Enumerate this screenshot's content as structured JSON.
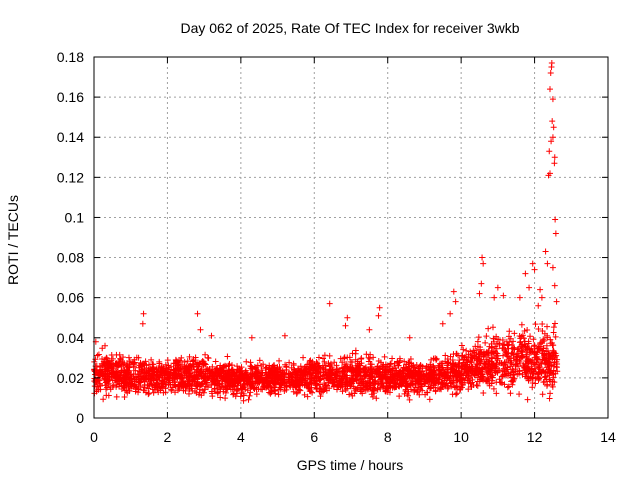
{
  "chart_data": {
    "type": "scatter",
    "title": "Day 062 of 2025, Rate Of TEC Index for receiver 3wkb",
    "xlabel": "GPS time / hours",
    "ylabel": "ROTI / TECUs",
    "xlim": [
      0,
      14
    ],
    "ylim": [
      0,
      0.18
    ],
    "x_ticks": [
      0,
      2,
      4,
      6,
      8,
      10,
      12,
      14
    ],
    "x_tick_labels": [
      "0",
      "2",
      "4",
      "6",
      "8",
      "10",
      "12",
      "14"
    ],
    "y_ticks": [
      0,
      0.02,
      0.04,
      0.06,
      0.08,
      0.1,
      0.12,
      0.14,
      0.16,
      0.18
    ],
    "y_tick_labels": [
      "0",
      "0.02",
      "0.04",
      "0.06",
      "0.08",
      "0.1",
      "0.12",
      "0.14",
      "0.16",
      "0.18"
    ],
    "grid": true,
    "marker": "+",
    "series": [
      {
        "name": "ROTI",
        "color": "#ff0000",
        "time_range": [
          0,
          12.62
        ],
        "dense_band": [
          {
            "x": 0.0,
            "low": 0.008,
            "high": 0.033
          },
          {
            "x": 0.5,
            "low": 0.008,
            "high": 0.035
          },
          {
            "x": 1.0,
            "low": 0.008,
            "high": 0.032
          },
          {
            "x": 2.0,
            "low": 0.009,
            "high": 0.03
          },
          {
            "x": 3.0,
            "low": 0.008,
            "high": 0.033
          },
          {
            "x": 4.0,
            "low": 0.008,
            "high": 0.028
          },
          {
            "x": 5.0,
            "low": 0.009,
            "high": 0.03
          },
          {
            "x": 6.0,
            "low": 0.009,
            "high": 0.031
          },
          {
            "x": 7.0,
            "low": 0.008,
            "high": 0.033
          },
          {
            "x": 8.0,
            "low": 0.008,
            "high": 0.031
          },
          {
            "x": 9.0,
            "low": 0.008,
            "high": 0.03
          },
          {
            "x": 10.0,
            "low": 0.008,
            "high": 0.036
          },
          {
            "x": 10.5,
            "low": 0.008,
            "high": 0.04
          },
          {
            "x": 11.0,
            "low": 0.007,
            "high": 0.046
          },
          {
            "x": 11.5,
            "low": 0.007,
            "high": 0.046
          },
          {
            "x": 12.0,
            "low": 0.006,
            "high": 0.048
          },
          {
            "x": 12.6,
            "low": 0.007,
            "high": 0.05
          }
        ],
        "spikes": [
          {
            "x": 0.05,
            "y": 0.038
          },
          {
            "x": 0.3,
            "y": 0.036
          },
          {
            "x": 1.35,
            "y": 0.052
          },
          {
            "x": 1.33,
            "y": 0.047
          },
          {
            "x": 2.82,
            "y": 0.052
          },
          {
            "x": 2.9,
            "y": 0.044
          },
          {
            "x": 3.2,
            "y": 0.041
          },
          {
            "x": 4.3,
            "y": 0.04
          },
          {
            "x": 5.2,
            "y": 0.041
          },
          {
            "x": 6.42,
            "y": 0.057
          },
          {
            "x": 6.9,
            "y": 0.05
          },
          {
            "x": 6.85,
            "y": 0.046
          },
          {
            "x": 7.5,
            "y": 0.044
          },
          {
            "x": 7.78,
            "y": 0.055
          },
          {
            "x": 7.75,
            "y": 0.051
          },
          {
            "x": 8.6,
            "y": 0.04
          },
          {
            "x": 9.7,
            "y": 0.052
          },
          {
            "x": 9.5,
            "y": 0.047
          },
          {
            "x": 9.8,
            "y": 0.063
          },
          {
            "x": 9.85,
            "y": 0.058
          },
          {
            "x": 10.5,
            "y": 0.062
          },
          {
            "x": 10.57,
            "y": 0.08
          },
          {
            "x": 10.6,
            "y": 0.077
          },
          {
            "x": 10.55,
            "y": 0.067
          },
          {
            "x": 10.9,
            "y": 0.06
          },
          {
            "x": 11.0,
            "y": 0.065
          },
          {
            "x": 11.15,
            "y": 0.061
          },
          {
            "x": 11.6,
            "y": 0.06
          },
          {
            "x": 11.75,
            "y": 0.072
          },
          {
            "x": 11.95,
            "y": 0.077
          },
          {
            "x": 12.0,
            "y": 0.074
          },
          {
            "x": 11.85,
            "y": 0.065
          },
          {
            "x": 12.1,
            "y": 0.056
          },
          {
            "x": 12.3,
            "y": 0.083
          },
          {
            "x": 12.35,
            "y": 0.077
          },
          {
            "x": 12.38,
            "y": 0.121
          },
          {
            "x": 12.42,
            "y": 0.122
          },
          {
            "x": 12.4,
            "y": 0.133
          },
          {
            "x": 12.45,
            "y": 0.138
          },
          {
            "x": 12.5,
            "y": 0.14
          },
          {
            "x": 12.48,
            "y": 0.148
          },
          {
            "x": 12.52,
            "y": 0.145
          },
          {
            "x": 12.42,
            "y": 0.164
          },
          {
            "x": 12.44,
            "y": 0.172
          },
          {
            "x": 12.46,
            "y": 0.175
          },
          {
            "x": 12.47,
            "y": 0.177
          },
          {
            "x": 12.5,
            "y": 0.159
          },
          {
            "x": 12.55,
            "y": 0.13
          },
          {
            "x": 12.54,
            "y": 0.127
          },
          {
            "x": 12.56,
            "y": 0.099
          },
          {
            "x": 12.58,
            "y": 0.092
          },
          {
            "x": 12.5,
            "y": 0.075
          },
          {
            "x": 12.55,
            "y": 0.066
          },
          {
            "x": 12.6,
            "y": 0.058
          },
          {
            "x": 12.2,
            "y": 0.06
          },
          {
            "x": 12.15,
            "y": 0.064
          }
        ]
      }
    ]
  }
}
